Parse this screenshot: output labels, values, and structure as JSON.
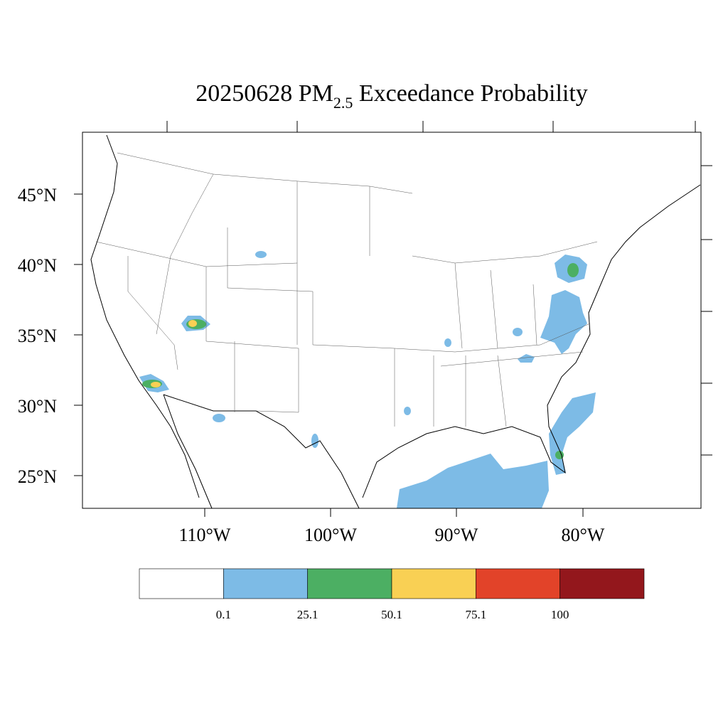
{
  "title": {
    "prefix": "20250628 PM",
    "subscript": "2.5",
    "suffix": " Exceedance Probability"
  },
  "map": {
    "lat_labels": [
      "45°N",
      "40°N",
      "35°N",
      "30°N",
      "25°N"
    ],
    "lon_labels": [
      "110°W",
      "100°W",
      "90°W",
      "80°W"
    ]
  },
  "legend": {
    "colors": [
      "#ffffff",
      "#7dbbe6",
      "#4caf63",
      "#f9d054",
      "#e24329",
      "#93171c"
    ],
    "labels": [
      "0.1",
      "25.1",
      "50.1",
      "75.1",
      "100"
    ]
  }
}
